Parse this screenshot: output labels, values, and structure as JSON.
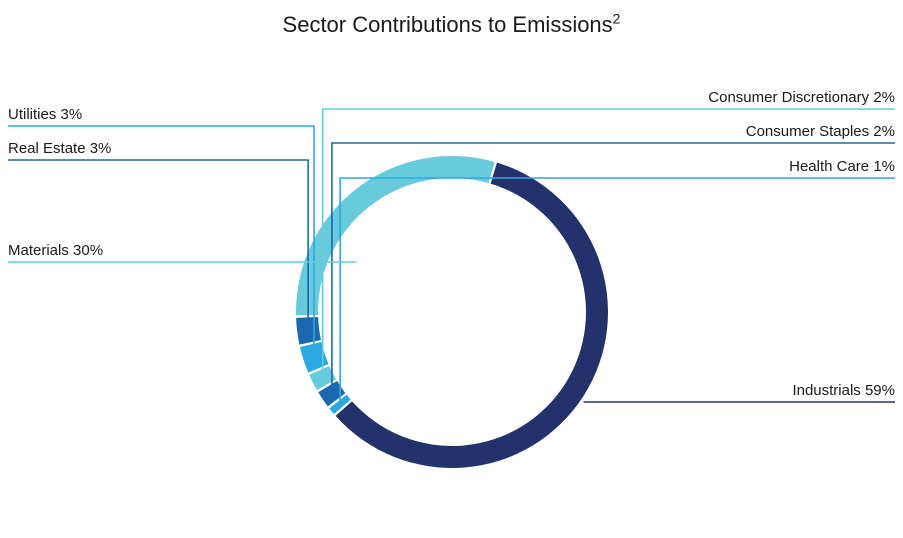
{
  "chart_data": {
    "type": "pie",
    "title": "Sector Contributions to Emissions",
    "title_superscript": "2",
    "categories": [
      "Industrials",
      "Health Care",
      "Consumer Staples",
      "Consumer Discretionary",
      "Utilities",
      "Real Estate",
      "Materials"
    ],
    "values": [
      59,
      1,
      2,
      2,
      3,
      3,
      30
    ],
    "labels": [
      "Industrials 59%",
      "Health Care 1%",
      "Consumer Staples 2%",
      "Consumer Discretionary 2%",
      "Utilities 3%",
      "Real Estate 3%",
      "Materials 30%"
    ],
    "colors": [
      "#22336b",
      "#2aa9e0",
      "#1b67b0",
      "#67cbdc",
      "#2aa9e0",
      "#1b67b0",
      "#67cbdc"
    ],
    "donut": true
  }
}
